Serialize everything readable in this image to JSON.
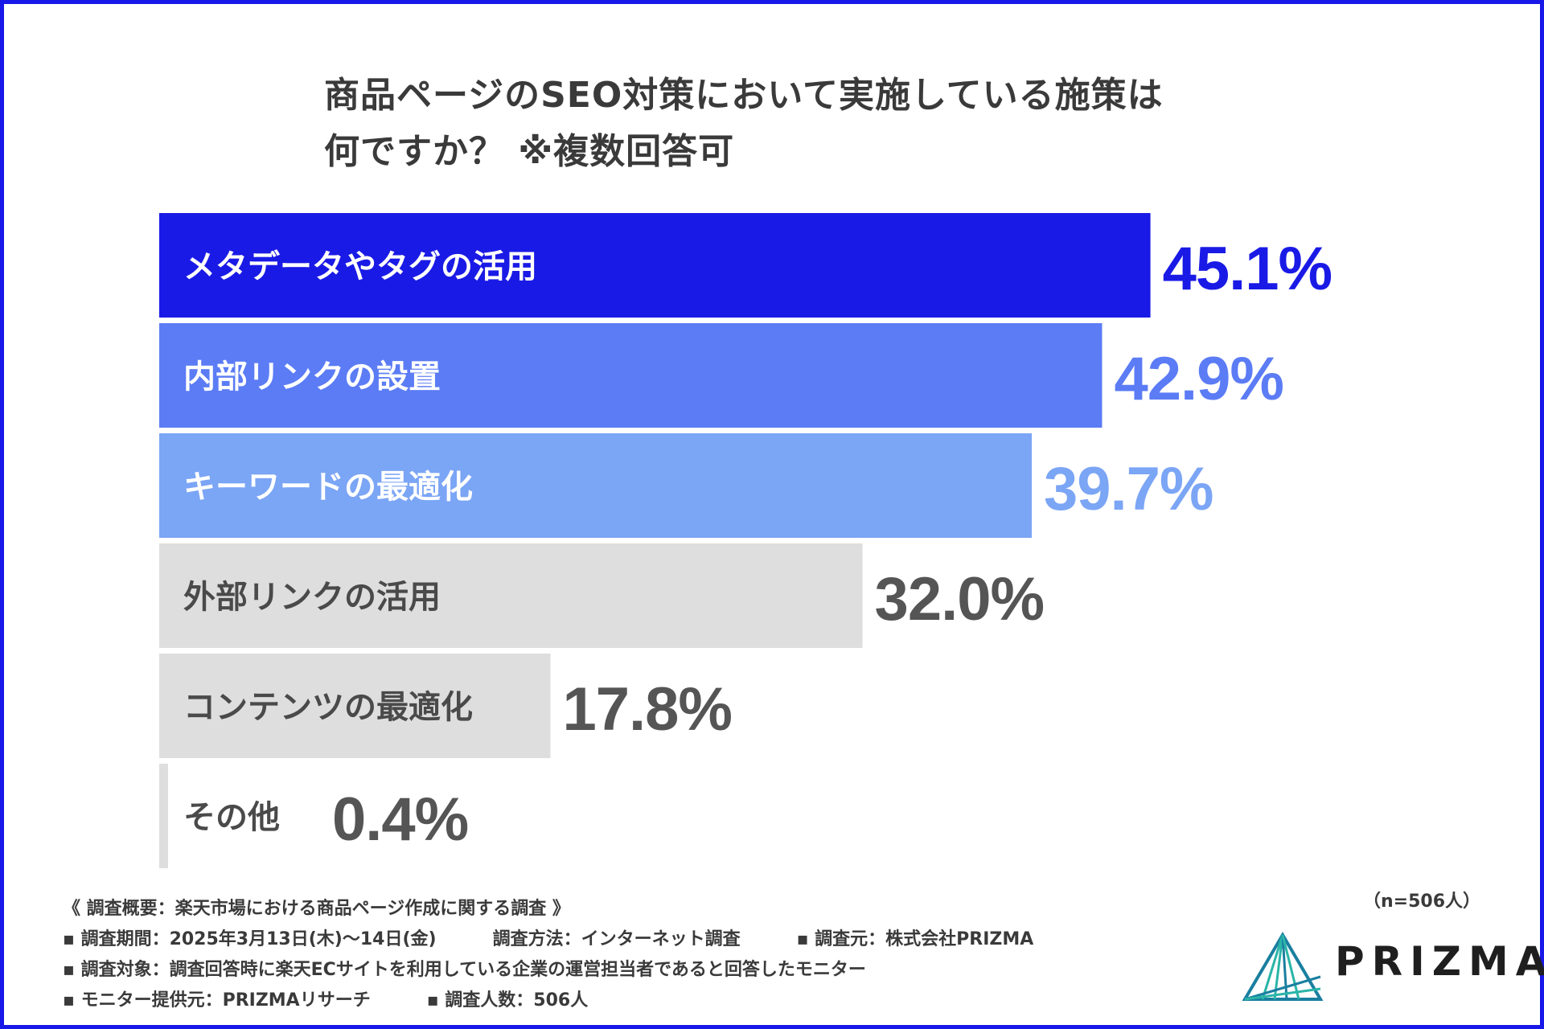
{
  "title": {
    "line1": "商品ページのSEO対策において実施している施策は",
    "line2": "何ですか？ ※複数回答可"
  },
  "chart_data": {
    "type": "bar",
    "orientation": "horizontal",
    "title": "商品ページのSEO対策において実施している施策は何ですか？ ※複数回答可",
    "unit": "%",
    "xlim": [
      0,
      50
    ],
    "categories": [
      "メタデータやタグの活用",
      "内部リンクの設置",
      "キーワードの最適化",
      "外部リンクの活用",
      "コンテンツの最適化",
      "その他"
    ],
    "values": [
      45.1,
      42.9,
      39.7,
      32.0,
      17.8,
      0.4
    ],
    "value_labels": [
      "45.1%",
      "42.9%",
      "39.7%",
      "32.0%",
      "17.8%",
      "0.4%"
    ],
    "bar_colors": [
      "#1a1ae6",
      "#5b7cf5",
      "#7ba5f5",
      "#dedede",
      "#dedede",
      "#dedede"
    ],
    "category_label_colors": [
      "#ffffff",
      "#ffffff",
      "#ffffff",
      "#4a4a4a",
      "#4a4a4a",
      "#4a4a4a"
    ],
    "value_label_colors": [
      "#1a1ae6",
      "#5b7cf5",
      "#7ba5f5",
      "#555555",
      "#555555",
      "#555555"
    ]
  },
  "footer": {
    "summary": "《 調査概要：楽天市場における商品ページ作成に関する調査 》",
    "period": "▪ 調査期間：2025年3月13日(木)〜14日(金)",
    "method": "調査方法：インターネット調査",
    "source": "▪ 調査元：株式会社PRIZMA",
    "target": "▪ 調査対象：調査回答時に楽天ECサイトを利用している企業の運営担当者であると回答したモニター",
    "provider": "▪ モニター提供元：PRIZMAリサーチ",
    "count": "▪ 調査人数：506人"
  },
  "sample_size": "（n=506人）",
  "logo": {
    "text": "PRIZMA",
    "icon": "prizma-triangle-logo-icon",
    "colors": [
      "#1a7fa0",
      "#2bb5a8"
    ]
  }
}
